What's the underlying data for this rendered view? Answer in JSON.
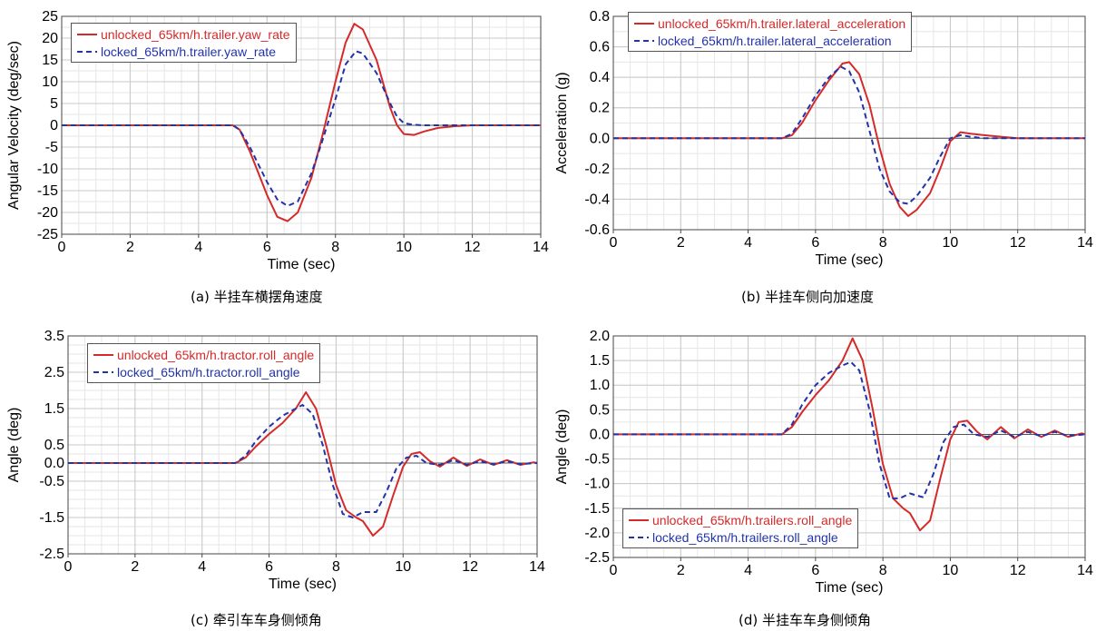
{
  "chart_data": [
    {
      "type": "line",
      "xlabel": "Time (sec)",
      "ylabel": "Angular Velocity (deg/sec)",
      "xlim": [
        0,
        14
      ],
      "ylim": [
        -25,
        25
      ],
      "xticks": [
        0,
        2,
        4,
        6,
        8,
        10,
        12,
        14
      ],
      "yticks": [
        -25,
        -20,
        -15,
        -10,
        -5,
        0,
        5,
        10,
        15,
        20,
        25
      ],
      "grid": true,
      "legend_position": "top-left",
      "caption": "(a)  半挂车横摆角速度",
      "series": [
        {
          "name": "unlocked_65km/h.trailer.yaw_rate",
          "color": "#d42a2a",
          "style": "solid",
          "x": [
            0,
            5.0,
            5.2,
            5.5,
            6.0,
            6.3,
            6.6,
            6.9,
            7.3,
            7.6,
            8.0,
            8.3,
            8.55,
            8.8,
            9.2,
            9.6,
            9.8,
            10.0,
            10.3,
            10.6,
            11.0,
            11.5,
            12.0,
            13.0,
            14.0
          ],
          "y": [
            0,
            0,
            -1,
            -6,
            -16,
            -21,
            -22,
            -20,
            -12,
            -3,
            10,
            19,
            23.3,
            22,
            15,
            4,
            0,
            -2,
            -2.2,
            -1.4,
            -0.6,
            -0.2,
            0,
            0,
            0
          ]
        },
        {
          "name": "locked_65km/h.trailer.yaw_rate",
          "color": "#2233aa",
          "style": "dashed",
          "x": [
            0,
            5.0,
            5.2,
            5.5,
            6.0,
            6.3,
            6.6,
            6.9,
            7.3,
            7.6,
            8.0,
            8.3,
            8.6,
            8.8,
            9.2,
            9.6,
            9.8,
            10.0,
            10.3,
            10.6,
            11.0,
            12.0,
            14.0
          ],
          "y": [
            0,
            0,
            -1,
            -5,
            -13,
            -17,
            -18.5,
            -17.5,
            -11,
            -4,
            6,
            14,
            17,
            16.5,
            12,
            5,
            2,
            0.5,
            0.1,
            0,
            0,
            0,
            0
          ]
        }
      ]
    },
    {
      "type": "line",
      "xlabel": "Time (sec)",
      "ylabel": "Acceleration (g)",
      "xlim": [
        0,
        14
      ],
      "ylim": [
        -0.6,
        0.8
      ],
      "xticks": [
        0,
        2,
        4,
        6,
        8,
        10,
        12,
        14
      ],
      "yticks": [
        -0.6,
        -0.4,
        -0.2,
        0.0,
        0.2,
        0.4,
        0.6,
        0.8
      ],
      "grid": true,
      "legend_position": "top-left",
      "caption": "(b)  半挂车侧向加速度",
      "series": [
        {
          "name": "unlocked_65km/h.trailer.lateral_acceleration",
          "color": "#d42a2a",
          "style": "solid",
          "x": [
            0,
            5.0,
            5.3,
            5.6,
            6.0,
            6.4,
            6.8,
            7.0,
            7.3,
            7.6,
            7.9,
            8.2,
            8.5,
            8.75,
            9.0,
            9.4,
            9.7,
            10.0,
            10.3,
            10.6,
            11.0,
            11.5,
            12.0,
            13.0,
            14.0
          ],
          "y": [
            0,
            0,
            0.02,
            0.1,
            0.25,
            0.38,
            0.49,
            0.5,
            0.42,
            0.22,
            -0.06,
            -0.3,
            -0.45,
            -0.51,
            -0.47,
            -0.36,
            -0.2,
            -0.02,
            0.04,
            0.03,
            0.02,
            0.01,
            0,
            0,
            0
          ]
        },
        {
          "name": "locked_65km/h.trailer.lateral_acceleration",
          "color": "#2233aa",
          "style": "dashed",
          "x": [
            0,
            5.0,
            5.3,
            5.6,
            6.0,
            6.4,
            6.75,
            7.0,
            7.3,
            7.6,
            7.9,
            8.2,
            8.5,
            8.75,
            9.0,
            9.4,
            9.7,
            10.0,
            10.3,
            10.6,
            11.0,
            12.0,
            14.0
          ],
          "y": [
            0,
            0,
            0.03,
            0.13,
            0.28,
            0.4,
            0.47,
            0.44,
            0.3,
            0.05,
            -0.2,
            -0.35,
            -0.42,
            -0.43,
            -0.38,
            -0.26,
            -0.12,
            0,
            0.02,
            0.01,
            0,
            0,
            0
          ]
        }
      ]
    },
    {
      "type": "line",
      "xlabel": "Time (sec)",
      "ylabel": "Angle (deg)",
      "xlim": [
        0,
        14
      ],
      "ylim": [
        -2.5,
        3.5
      ],
      "xticks": [
        0,
        2,
        4,
        6,
        8,
        10,
        12,
        14
      ],
      "yticks": [
        -2.5,
        -1.5,
        -0.5,
        0.0,
        0.5,
        1.5,
        2.5,
        3.5
      ],
      "grid": true,
      "legend_position": "top-left",
      "caption": "(c)  牵引车车身侧倾角",
      "series": [
        {
          "name": "unlocked_65km/h.tractor.roll_angle",
          "color": "#d42a2a",
          "style": "solid",
          "x": [
            0,
            5.0,
            5.3,
            5.6,
            6.0,
            6.4,
            6.8,
            7.1,
            7.4,
            7.7,
            8.0,
            8.3,
            8.6,
            8.8,
            9.1,
            9.4,
            9.7,
            10.0,
            10.25,
            10.5,
            10.8,
            11.1,
            11.5,
            11.9,
            12.3,
            12.7,
            13.1,
            13.5,
            13.9,
            14.0
          ],
          "y": [
            0,
            0,
            0.15,
            0.45,
            0.8,
            1.1,
            1.5,
            1.95,
            1.5,
            0.5,
            -0.6,
            -1.3,
            -1.5,
            -1.6,
            -2.0,
            -1.75,
            -0.9,
            -0.1,
            0.25,
            0.3,
            0.05,
            -0.1,
            0.15,
            -0.08,
            0.1,
            -0.05,
            0.08,
            -0.05,
            0.02,
            0
          ]
        },
        {
          "name": "locked_65km/h.tractor.roll_angle",
          "color": "#2233aa",
          "style": "dashed",
          "x": [
            0,
            5.0,
            5.3,
            5.6,
            6.0,
            6.4,
            6.8,
            7.0,
            7.3,
            7.6,
            7.9,
            8.2,
            8.5,
            8.8,
            9.2,
            9.5,
            9.8,
            10.1,
            10.4,
            10.7,
            11.1,
            11.5,
            11.9,
            12.3,
            12.7,
            13.1,
            13.5,
            14.0
          ],
          "y": [
            0,
            0,
            0.2,
            0.6,
            1.0,
            1.3,
            1.5,
            1.6,
            1.35,
            0.5,
            -0.6,
            -1.4,
            -1.5,
            -1.35,
            -1.35,
            -0.8,
            -0.15,
            0.15,
            0.2,
            0,
            -0.05,
            0.08,
            -0.05,
            0.05,
            -0.04,
            0.05,
            -0.03,
            0
          ]
        }
      ]
    },
    {
      "type": "line",
      "xlabel": "Time (sec)",
      "ylabel": "Angle (deg)",
      "xlim": [
        0,
        14
      ],
      "ylim": [
        -2.5,
        2.0
      ],
      "xticks": [
        0,
        2,
        4,
        6,
        8,
        10,
        12,
        14
      ],
      "yticks": [
        -2.5,
        -2.0,
        -1.5,
        -1.0,
        -0.5,
        0.0,
        0.5,
        1.0,
        1.5,
        2.0
      ],
      "grid": true,
      "legend_position": "bottom-left",
      "caption": "(d)  半挂车车身侧倾角",
      "series": [
        {
          "name": "unlocked_65km/h.trailers.roll_angle",
          "color": "#d42a2a",
          "style": "solid",
          "x": [
            0,
            5.0,
            5.3,
            5.6,
            6.0,
            6.4,
            6.8,
            7.1,
            7.4,
            7.7,
            8.0,
            8.3,
            8.6,
            8.8,
            9.1,
            9.4,
            9.7,
            10.0,
            10.25,
            10.5,
            10.8,
            11.1,
            11.5,
            11.9,
            12.3,
            12.7,
            13.1,
            13.5,
            13.9,
            14.0
          ],
          "y": [
            0,
            0,
            0.15,
            0.45,
            0.8,
            1.1,
            1.5,
            1.95,
            1.5,
            0.5,
            -0.6,
            -1.3,
            -1.5,
            -1.6,
            -1.95,
            -1.75,
            -0.9,
            -0.1,
            0.25,
            0.28,
            0.05,
            -0.1,
            0.15,
            -0.08,
            0.1,
            -0.05,
            0.08,
            -0.05,
            0.02,
            0
          ]
        },
        {
          "name": "locked_65km/h.trailers.roll_angle",
          "color": "#2233aa",
          "style": "dashed",
          "x": [
            0,
            5.0,
            5.3,
            5.6,
            6.0,
            6.4,
            6.8,
            7.05,
            7.3,
            7.6,
            7.9,
            8.2,
            8.5,
            8.8,
            9.2,
            9.5,
            9.8,
            10.1,
            10.4,
            10.7,
            11.1,
            11.5,
            11.9,
            12.3,
            12.7,
            13.1,
            13.5,
            14.0
          ],
          "y": [
            0,
            0,
            0.2,
            0.6,
            1.0,
            1.25,
            1.4,
            1.47,
            1.3,
            0.5,
            -0.6,
            -1.3,
            -1.3,
            -1.2,
            -1.28,
            -0.8,
            -0.15,
            0.15,
            0.2,
            0,
            -0.05,
            0.08,
            -0.05,
            0.05,
            -0.04,
            0.05,
            -0.03,
            0
          ]
        }
      ]
    }
  ]
}
